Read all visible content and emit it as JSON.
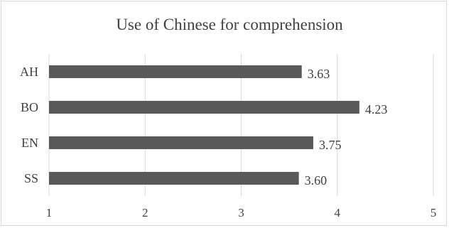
{
  "chart_data": {
    "type": "bar",
    "orientation": "horizontal",
    "title": "Use of Chinese for comprehension",
    "categories": [
      "AH",
      "BO",
      "EN",
      "SS"
    ],
    "values": [
      3.63,
      4.23,
      3.75,
      3.6
    ],
    "value_labels": [
      "3.63",
      "4.23",
      "3.75",
      "3.60"
    ],
    "xlim": [
      1,
      5
    ],
    "xticks": [
      "1",
      "2",
      "3",
      "4",
      "5"
    ],
    "xlabel": "",
    "ylabel": "",
    "grid": "vertical",
    "legend": "none",
    "bar_color": "#595959",
    "grid_color": "#d9d9d9",
    "text_color": "#404040"
  }
}
